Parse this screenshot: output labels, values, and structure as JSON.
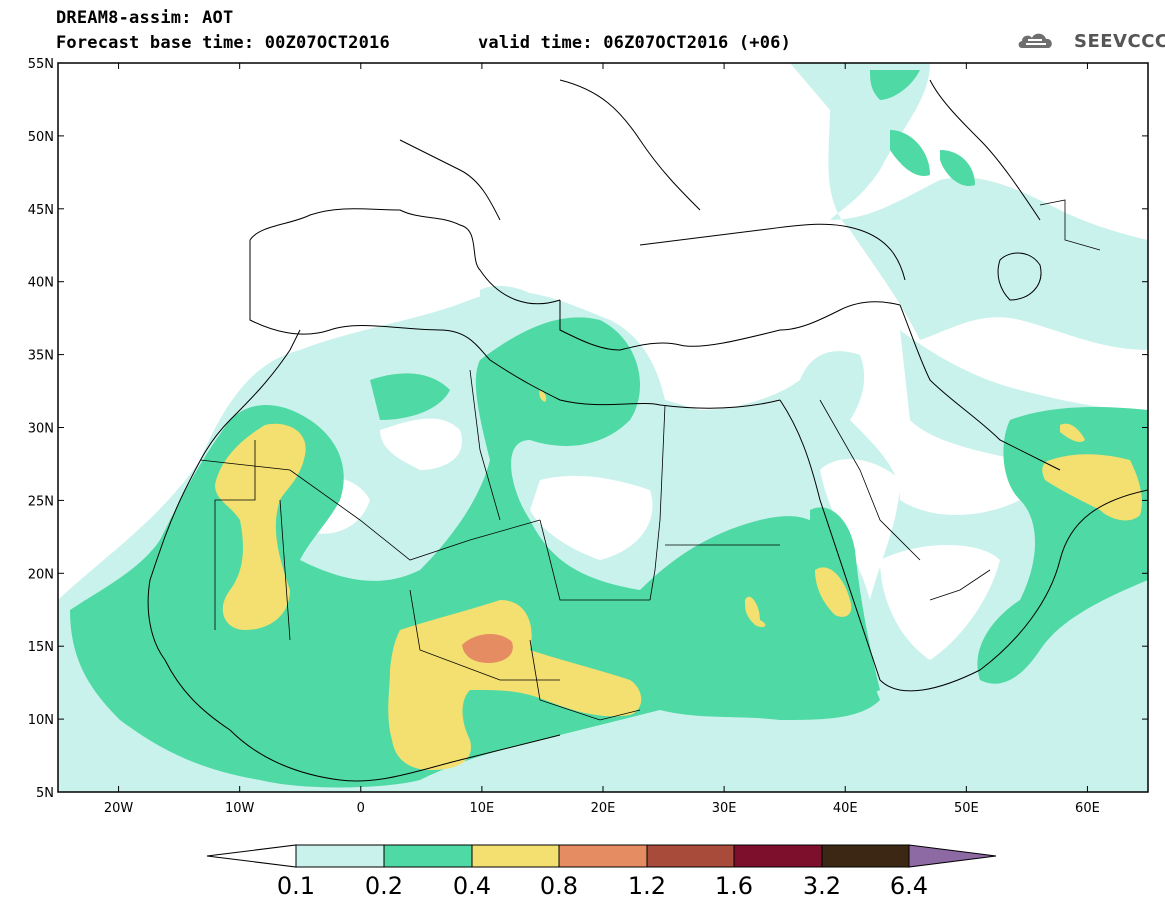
{
  "header": {
    "line1": "DREAM8-assim: AOT",
    "line2": "Forecast base time: 00Z07OCT2016",
    "line3": "valid time: 06Z07OCT2016 (+06)",
    "logo": "SEEVCCC"
  },
  "axes": {
    "y_labels": [
      "55N",
      "50N",
      "45N",
      "40N",
      "35N",
      "30N",
      "25N",
      "20N",
      "15N",
      "10N",
      "5N"
    ],
    "x_labels": [
      "20W",
      "10W",
      "0",
      "10E",
      "20E",
      "30E",
      "40E",
      "50E",
      "60E"
    ]
  },
  "colorbar": {
    "labels": [
      "0.1",
      "0.2",
      "0.4",
      "0.8",
      "1.2",
      "1.6",
      "3.2",
      "6.4"
    ],
    "colors": [
      "#ffffff",
      "#c9f2ec",
      "#4fd9a4",
      "#f4e070",
      "#e58c62",
      "#a84b3a",
      "#7d0f2c",
      "#3c2714",
      "#8e6aa5"
    ]
  },
  "map": {
    "variable": "AOT",
    "lon_range": [
      -25,
      65
    ],
    "lat_range": [
      5,
      55
    ],
    "levels": {
      "l1": "#c9f2ec",
      "l2": "#4fd9a4",
      "l3": "#f4e070",
      "l4": "#e58c62"
    }
  }
}
